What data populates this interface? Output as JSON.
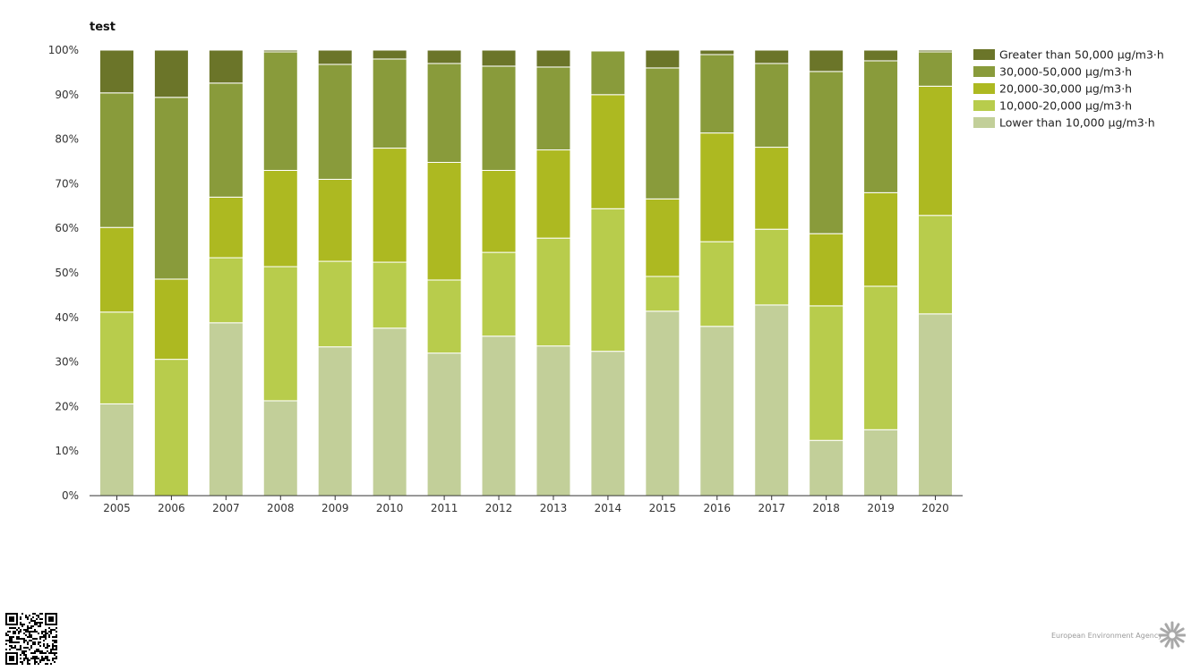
{
  "chart_data": {
    "type": "bar",
    "stacked": true,
    "title": "test",
    "xlabel": "",
    "ylabel": "",
    "ylim": [
      0,
      100
    ],
    "y_ticks": [
      "0%",
      "10%",
      "20%",
      "30%",
      "40%",
      "50%",
      "60%",
      "70%",
      "80%",
      "90%",
      "100%"
    ],
    "categories": [
      "2005",
      "2006",
      "2007",
      "2008",
      "2009",
      "2010",
      "2011",
      "2012",
      "2013",
      "2014",
      "2015",
      "2016",
      "2017",
      "2018",
      "2019",
      "2020"
    ],
    "legend_position": "top-right",
    "grid": false,
    "series": [
      {
        "name": "Lower than 10,000 µg/m3·h",
        "color": "#c2cf99",
        "values": [
          20.6,
          0,
          38.8,
          21.3,
          33.4,
          37.6,
          32.0,
          35.8,
          33.6,
          32.4,
          41.4,
          38.0,
          42.8,
          12.4,
          14.8,
          40.8
        ]
      },
      {
        "name": "10,000-20,000 µg/m3·h",
        "color": "#b8cc4c",
        "values": [
          20.6,
          30.6,
          14.6,
          30.1,
          19.2,
          14.8,
          16.4,
          18.8,
          24.2,
          32.0,
          7.8,
          19.0,
          17.0,
          30.2,
          32.2,
          22.1
        ]
      },
      {
        "name": "20,000-30,000 µg/m3·h",
        "color": "#adb921",
        "values": [
          19.0,
          18.0,
          13.6,
          21.6,
          18.4,
          25.6,
          26.4,
          18.4,
          19.8,
          25.6,
          17.4,
          24.4,
          18.4,
          16.2,
          21.0,
          29.0
        ]
      },
      {
        "name": "30,000-50,000 µg/m3·h",
        "color": "#899b3b",
        "values": [
          30.2,
          40.8,
          25.6,
          26.6,
          25.8,
          20.0,
          22.2,
          23.4,
          18.6,
          9.8,
          29.4,
          17.6,
          18.8,
          36.4,
          29.6,
          7.7
        ]
      },
      {
        "name": "Greater than 50,000 µg/m3·h",
        "color": "#6b7529",
        "values": [
          9.6,
          10.6,
          7.4,
          0.4,
          3.2,
          2.0,
          3.0,
          3.6,
          3.8,
          0.2,
          4.0,
          1.0,
          3.0,
          4.8,
          2.4,
          0.4
        ]
      }
    ]
  },
  "footer": {
    "logo_text": "European Environment Agency",
    "qr_icon": "qr-code-icon",
    "logo_icon": "eea-sun-logo-icon"
  }
}
